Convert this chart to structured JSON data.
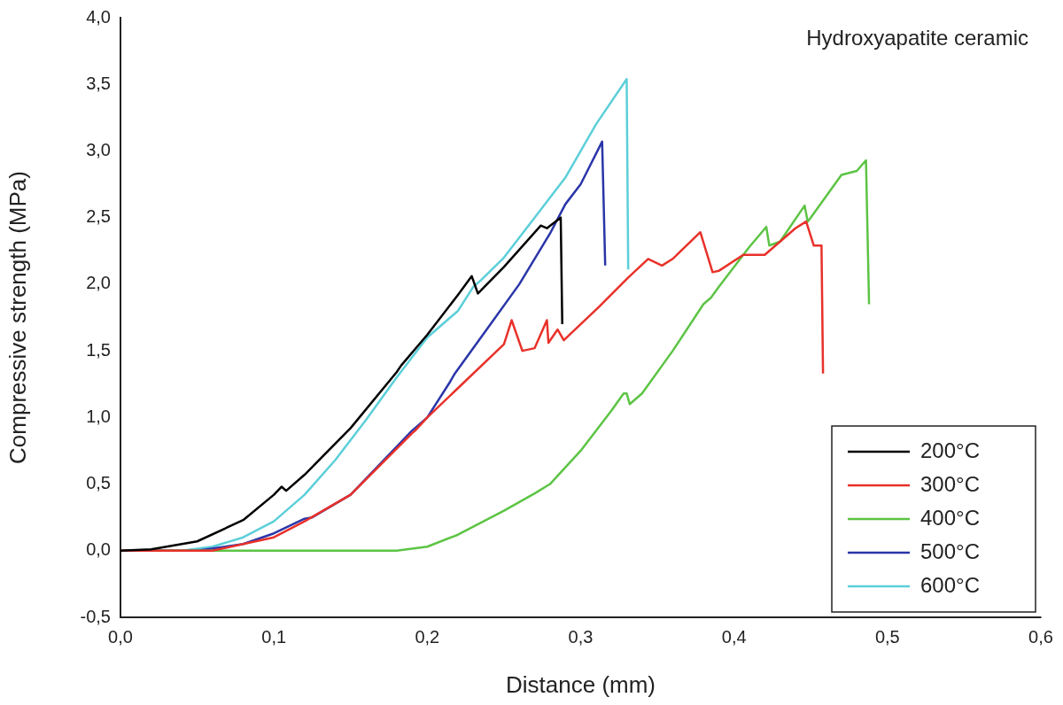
{
  "chart_data": {
    "type": "line",
    "xlabel": "Distance (mm)",
    "ylabel": "Compressive strength (MPa)",
    "annotations": [
      {
        "text": "Hydroxyapatite ceramic"
      }
    ],
    "xlim": [
      0,
      0.6
    ],
    "ylim": [
      -0.5,
      4.0
    ],
    "xticks": [
      {
        "value": 0,
        "label": "0,0"
      },
      {
        "value": 0.1,
        "label": "0,1"
      },
      {
        "value": 0.2,
        "label": "0,2"
      },
      {
        "value": 0.3,
        "label": "0,3"
      },
      {
        "value": 0.4,
        "label": "0,4"
      },
      {
        "value": 0.5,
        "label": "0,5"
      },
      {
        "value": 0.6,
        "label": "0,6"
      }
    ],
    "yticks": [
      {
        "value": -0.5,
        "label": "-0,5"
      },
      {
        "value": 0,
        "label": "0,0"
      },
      {
        "value": 0.5,
        "label": "0,5"
      },
      {
        "value": 1,
        "label": "1,0"
      },
      {
        "value": 1.5,
        "label": "1,5"
      },
      {
        "value": 2,
        "label": "2,0"
      },
      {
        "value": 2.5,
        "label": "2,5"
      },
      {
        "value": 3,
        "label": "3,0"
      },
      {
        "value": 3.5,
        "label": "3,5"
      },
      {
        "value": 4,
        "label": "4,0"
      }
    ],
    "grid": false,
    "legend": "bottom right",
    "marker": "none",
    "line_style": "solid",
    "series": [
      {
        "name": "200°C",
        "color": "#000000",
        "x": [
          0,
          0.02,
          0.05,
          0.08,
          0.1,
          0.105,
          0.108,
          0.12,
          0.15,
          0.18,
          0.183,
          0.2,
          0.22,
          0.229,
          0.233,
          0.25,
          0.274,
          0.278,
          0.287,
          0.288
        ],
        "values": [
          0,
          0.01,
          0.07,
          0.23,
          0.42,
          0.48,
          0.45,
          0.57,
          0.92,
          1.34,
          1.39,
          1.62,
          1.92,
          2.06,
          1.93,
          2.13,
          2.44,
          2.42,
          2.5,
          1.7
        ]
      },
      {
        "name": "300°C",
        "color": "#e8312a",
        "x": [
          0,
          0.06,
          0.1,
          0.12,
          0.15,
          0.19,
          0.192,
          0.2,
          0.22,
          0.25,
          0.255,
          0.262,
          0.27,
          0.278,
          0.279,
          0.285,
          0.289,
          0.312,
          0.331,
          0.344,
          0.353,
          0.36,
          0.378,
          0.386,
          0.39,
          0.406,
          0.42,
          0.44,
          0.447,
          0.452,
          0.457,
          0.458
        ],
        "values": [
          0,
          0,
          0.1,
          0.22,
          0.42,
          0.88,
          0.9,
          1.0,
          1.22,
          1.55,
          1.73,
          1.5,
          1.52,
          1.73,
          1.56,
          1.66,
          1.58,
          1.83,
          2.05,
          2.19,
          2.14,
          2.19,
          2.39,
          2.09,
          2.1,
          2.22,
          2.22,
          2.42,
          2.47,
          2.29,
          2.29,
          1.33
        ]
      },
      {
        "name": "400°C",
        "color": "#5cc444",
        "x": [
          0,
          0.18,
          0.2,
          0.22,
          0.25,
          0.27,
          0.28,
          0.3,
          0.32,
          0.328,
          0.33,
          0.332,
          0.34,
          0.36,
          0.38,
          0.385,
          0.39,
          0.41,
          0.421,
          0.423,
          0.43,
          0.446,
          0.448,
          0.45,
          0.47,
          0.48,
          0.486,
          0.488
        ],
        "values": [
          0,
          0,
          0.03,
          0.12,
          0.3,
          0.43,
          0.5,
          0.75,
          1.05,
          1.18,
          1.18,
          1.1,
          1.18,
          1.5,
          1.85,
          1.9,
          1.98,
          2.28,
          2.43,
          2.29,
          2.32,
          2.59,
          2.47,
          2.5,
          2.82,
          2.85,
          2.93,
          1.85
        ]
      },
      {
        "name": "500°C",
        "color": "#2a35a8",
        "x": [
          0,
          0.05,
          0.08,
          0.1,
          0.12,
          0.125,
          0.15,
          0.19,
          0.2,
          0.215,
          0.218,
          0.24,
          0.26,
          0.28,
          0.29,
          0.3,
          0.314,
          0.316
        ],
        "values": [
          0,
          0,
          0.05,
          0.13,
          0.24,
          0.25,
          0.42,
          0.9,
          1.0,
          1.27,
          1.33,
          1.68,
          2.0,
          2.38,
          2.6,
          2.75,
          3.07,
          2.14
        ]
      },
      {
        "name": "600°C",
        "color": "#5ccfd9",
        "x": [
          0,
          0.04,
          0.06,
          0.08,
          0.1,
          0.12,
          0.14,
          0.16,
          0.18,
          0.2,
          0.22,
          0.23,
          0.235,
          0.25,
          0.27,
          0.29,
          0.31,
          0.33,
          0.331
        ],
        "values": [
          0,
          0,
          0.03,
          0.1,
          0.22,
          0.42,
          0.68,
          0.98,
          1.3,
          1.6,
          1.8,
          1.98,
          2.03,
          2.2,
          2.5,
          2.8,
          3.2,
          3.54,
          2.11
        ]
      }
    ]
  }
}
